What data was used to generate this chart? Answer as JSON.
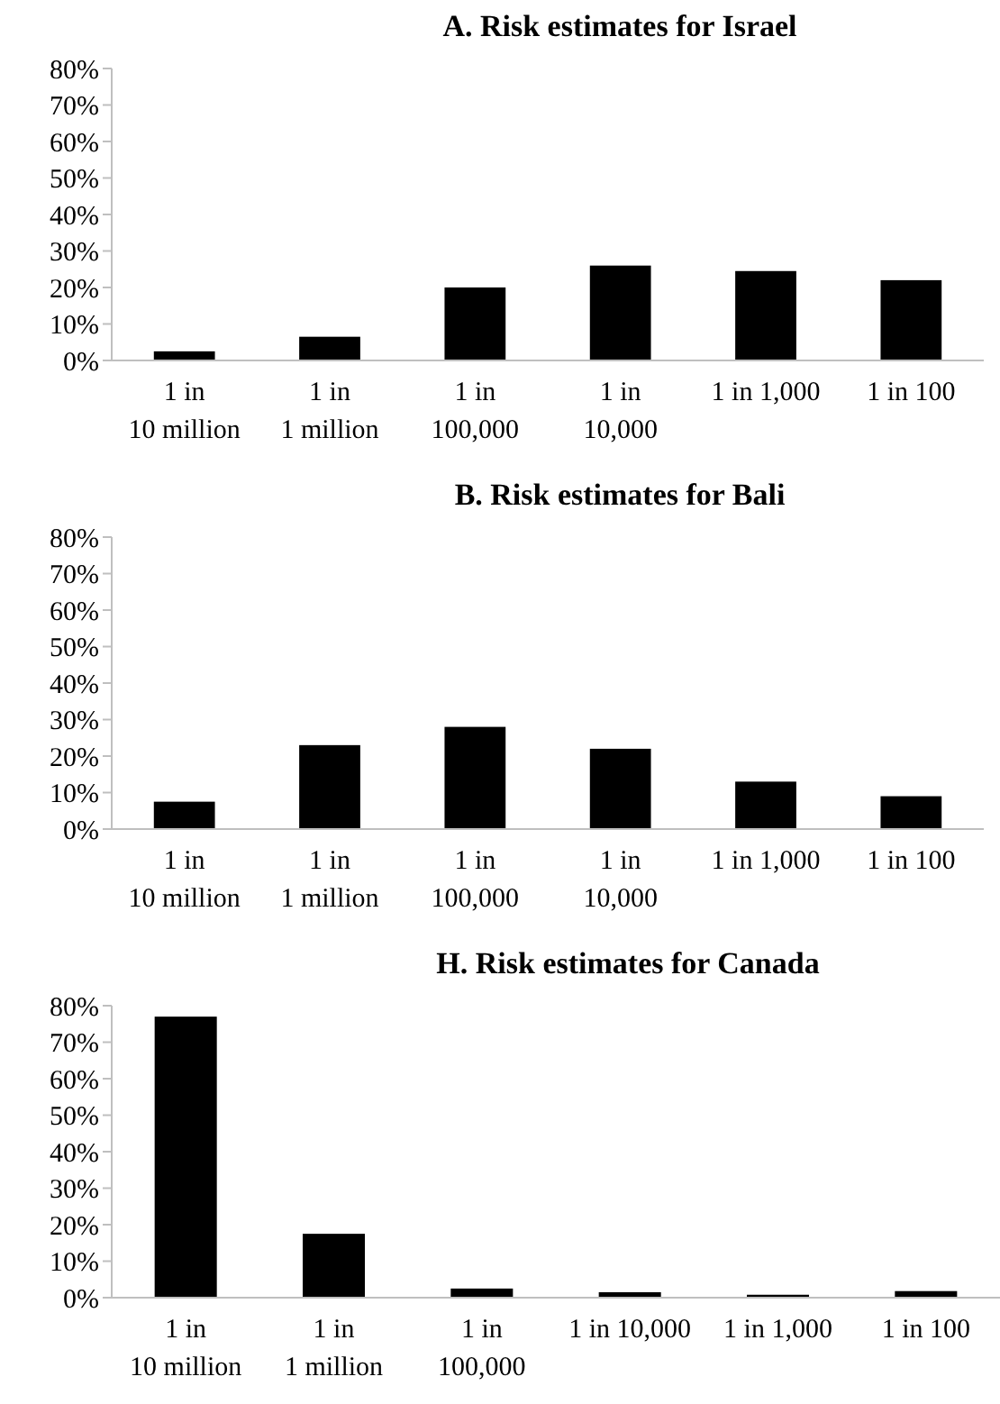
{
  "chart_data": [
    {
      "type": "bar",
      "title": "A. Risk estimates for Israel",
      "categories": [
        "1 in 10 million",
        "1 in 1 million",
        "1 in 100,000",
        "1 in 10,000",
        "1 in 1,000",
        "1 in 100"
      ],
      "values": [
        2.5,
        6.5,
        20,
        26,
        24.5,
        22
      ],
      "color": "#000000",
      "ylim": [
        0,
        80
      ],
      "yticks": [
        {
          "value": 0,
          "label": "0%"
        },
        {
          "value": 10,
          "label": "10%"
        },
        {
          "value": 20,
          "label": "20%"
        },
        {
          "value": 30,
          "label": "30%"
        },
        {
          "value": 40,
          "label": "40%"
        },
        {
          "value": 50,
          "label": "50%"
        },
        {
          "value": 60,
          "label": "60%"
        },
        {
          "value": 70,
          "label": "70%"
        },
        {
          "value": 80,
          "label": "80%"
        }
      ],
      "grid": false
    },
    {
      "type": "bar",
      "title": "B. Risk estimates for Bali",
      "categories": [
        "1 in 10 million",
        "1 in 1 million",
        "1 in 100,000",
        "1 in 10,000",
        "1 in 1,000",
        "1 in 100"
      ],
      "values": [
        7.5,
        23,
        28,
        22,
        13,
        9
      ],
      "color": "#000000",
      "ylim": [
        0,
        80
      ],
      "yticks": [
        {
          "value": 0,
          "label": "0%"
        },
        {
          "value": 10,
          "label": "10%"
        },
        {
          "value": 20,
          "label": "20%"
        },
        {
          "value": 30,
          "label": "30%"
        },
        {
          "value": 40,
          "label": "40%"
        },
        {
          "value": 50,
          "label": "50%"
        },
        {
          "value": 60,
          "label": "60%"
        },
        {
          "value": 70,
          "label": "70%"
        },
        {
          "value": 80,
          "label": "80%"
        }
      ],
      "grid": false
    },
    {
      "type": "bar",
      "title": "H. Risk estimates for Canada",
      "categories": [
        "1 in 10 million",
        "1 in 1 million",
        "1 in 100,000",
        "1 in 10,000",
        "1 in 1,000",
        "1 in 100"
      ],
      "values": [
        77,
        17.5,
        2.5,
        1.5,
        0.8,
        1.8
      ],
      "color": "#000000",
      "ylim": [
        0,
        80
      ],
      "yticks": [
        {
          "value": 0,
          "label": "0%"
        },
        {
          "value": 10,
          "label": "10%"
        },
        {
          "value": 20,
          "label": "20%"
        },
        {
          "value": 30,
          "label": "30%"
        },
        {
          "value": 40,
          "label": "40%"
        },
        {
          "value": 50,
          "label": "50%"
        },
        {
          "value": 60,
          "label": "60%"
        },
        {
          "value": 70,
          "label": "70%"
        },
        {
          "value": 80,
          "label": "80%"
        }
      ],
      "grid": false
    }
  ]
}
